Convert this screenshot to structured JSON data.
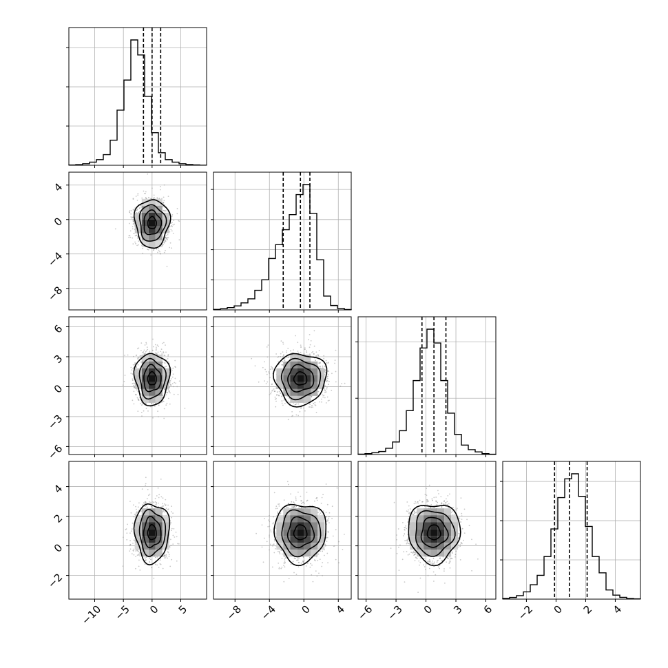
{
  "colors": {
    "background": "#ffffff",
    "grid": "#b0b0b0",
    "ink": "#000000",
    "scatter": "#9a9a9a"
  },
  "chart_data": {
    "type": "corner",
    "variables": 4,
    "axes": [
      {
        "range": [
          -14.5,
          9.5
        ],
        "ticks": [
          -10,
          -5,
          0,
          5
        ],
        "tick_labels": [
          "−10",
          "−5",
          "0",
          "5"
        ]
      },
      {
        "range": [
          -10.5,
          5.5
        ],
        "ticks": [
          -8,
          -4,
          0,
          4
        ],
        "tick_labels": [
          "−8",
          "−4",
          "0",
          "4"
        ]
      },
      {
        "range": [
          -6.8,
          7.0
        ],
        "ticks": [
          -6,
          -3,
          0,
          3,
          6
        ],
        "tick_labels": [
          "−6",
          "−3",
          "0",
          "3",
          "6"
        ]
      },
      {
        "range": [
          -3.6,
          5.7
        ],
        "ticks": [
          -2,
          0,
          2,
          4
        ],
        "tick_labels": [
          "−2",
          "0",
          "2",
          "4"
        ]
      }
    ],
    "quantiles": [
      [
        -1.5,
        0.0,
        1.5
      ],
      [
        -2.4,
        -0.4,
        0.7
      ],
      [
        -0.4,
        0.8,
        2.0
      ],
      [
        -0.1,
        0.9,
        2.1
      ]
    ],
    "histograms": [
      {
        "bins": 20,
        "counts": [
          0.2,
          0.5,
          1.2,
          2.5,
          4.5,
          8.5,
          20,
          44,
          68,
          100,
          88,
          55,
          26,
          10,
          4.5,
          2.5,
          1.2,
          0.6,
          0.3,
          0.1
        ]
      },
      {
        "bins": 20,
        "counts": [
          0.4,
          0.9,
          1.8,
          3.2,
          5.6,
          8.8,
          15.6,
          24,
          41,
          52,
          64,
          76,
          92,
          100,
          77,
          40,
          11,
          3.5,
          1.2,
          0.3
        ]
      },
      {
        "bins": 20,
        "counts": [
          0.3,
          0.7,
          1.4,
          2.4,
          5,
          10,
          19,
          35,
          59,
          85,
          100,
          89,
          59,
          33,
          16,
          7.5,
          3.9,
          2.1,
          0.7,
          0.2
        ]
      },
      {
        "bins": 20,
        "counts": [
          0.6,
          1.3,
          2.8,
          5.8,
          11.5,
          19,
          34,
          56,
          81,
          96,
          100,
          82,
          58,
          34,
          21,
          7.3,
          3.2,
          1.4,
          0.5,
          0.2
        ]
      }
    ],
    "joint": [
      {
        "x_var": 0,
        "y_var": 1,
        "center": [
          0.0,
          -0.4
        ],
        "sigma": [
          1.5,
          1.4
        ]
      },
      {
        "x_var": 0,
        "y_var": 2,
        "center": [
          0.0,
          0.8
        ],
        "sigma": [
          1.5,
          1.3
        ]
      },
      {
        "x_var": 1,
        "y_var": 2,
        "center": [
          -0.4,
          0.8
        ],
        "sigma": [
          1.5,
          1.3
        ]
      },
      {
        "x_var": 0,
        "y_var": 3,
        "center": [
          0.0,
          0.9
        ],
        "sigma": [
          1.5,
          1.0
        ]
      },
      {
        "x_var": 1,
        "y_var": 3,
        "center": [
          -0.4,
          0.9
        ],
        "sigma": [
          1.5,
          1.0
        ]
      },
      {
        "x_var": 2,
        "y_var": 3,
        "center": [
          0.8,
          0.9
        ],
        "sigma": [
          1.3,
          1.0
        ]
      }
    ],
    "contour_levels_sigma": [
      0.5,
      1.0,
      1.5,
      2.0
    ],
    "grid": true
  }
}
